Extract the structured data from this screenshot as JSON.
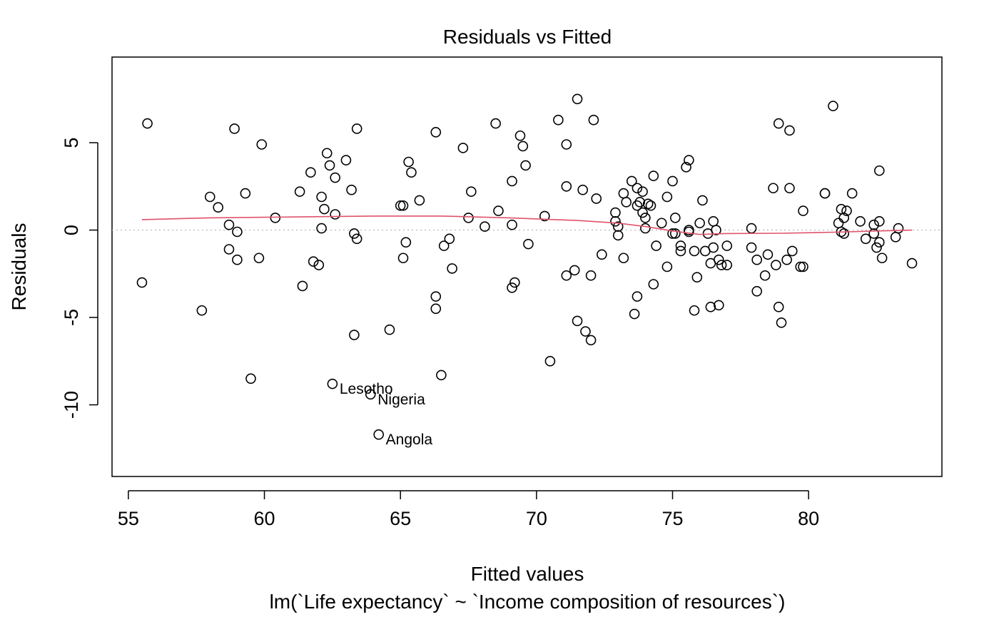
{
  "chart_data": {
    "type": "scatter",
    "title": "Residuals vs Fitted",
    "xlabel": "Fitted values",
    "subtitle": "lm(`Life expectancy` ~ `Income composition of resources`)",
    "ylabel": "Residuals",
    "xlim": [
      54.4,
      84.9
    ],
    "ylim": [
      -14.1,
      9.9
    ],
    "xticks": [
      55,
      60,
      65,
      70,
      75,
      80
    ],
    "yticks": [
      -10,
      -5,
      0,
      5
    ],
    "grid": false,
    "reference_line": {
      "y": 0,
      "style": "dotted",
      "color": "#bebebe"
    },
    "colors": {
      "points": "#000000",
      "smooth": "#df536b",
      "reference": "#bebebe"
    },
    "points": [
      {
        "x": 55.5,
        "y": -3.0
      },
      {
        "x": 55.7,
        "y": 6.1
      },
      {
        "x": 57.7,
        "y": -4.6
      },
      {
        "x": 58.0,
        "y": 1.9
      },
      {
        "x": 58.3,
        "y": 1.3
      },
      {
        "x": 58.7,
        "y": 0.3
      },
      {
        "x": 58.7,
        "y": -1.1
      },
      {
        "x": 58.9,
        "y": 5.8
      },
      {
        "x": 59.0,
        "y": -0.1
      },
      {
        "x": 59.0,
        "y": -1.7
      },
      {
        "x": 59.3,
        "y": 2.1
      },
      {
        "x": 59.5,
        "y": -8.5
      },
      {
        "x": 59.8,
        "y": -1.6
      },
      {
        "x": 59.9,
        "y": 4.9
      },
      {
        "x": 60.4,
        "y": 0.7
      },
      {
        "x": 61.3,
        "y": 2.2
      },
      {
        "x": 61.4,
        "y": -3.2
      },
      {
        "x": 61.7,
        "y": 3.3
      },
      {
        "x": 61.8,
        "y": -1.8
      },
      {
        "x": 62.0,
        "y": -2.0
      },
      {
        "x": 62.1,
        "y": 1.9
      },
      {
        "x": 62.1,
        "y": 0.1
      },
      {
        "x": 62.2,
        "y": 1.2
      },
      {
        "x": 62.3,
        "y": 4.4
      },
      {
        "x": 62.4,
        "y": 3.7
      },
      {
        "x": 62.6,
        "y": 0.9
      },
      {
        "x": 62.6,
        "y": 3.0
      },
      {
        "x": 63.0,
        "y": 4.0
      },
      {
        "x": 63.2,
        "y": 2.3
      },
      {
        "x": 63.3,
        "y": -0.2
      },
      {
        "x": 63.3,
        "y": -6.0
      },
      {
        "x": 63.4,
        "y": 5.8
      },
      {
        "x": 63.4,
        "y": -0.5
      },
      {
        "x": 64.6,
        "y": -5.7
      },
      {
        "x": 65.0,
        "y": 1.4
      },
      {
        "x": 65.1,
        "y": -1.6
      },
      {
        "x": 65.1,
        "y": 1.4
      },
      {
        "x": 65.2,
        "y": -0.7
      },
      {
        "x": 65.3,
        "y": 3.9
      },
      {
        "x": 65.4,
        "y": 3.3
      },
      {
        "x": 65.7,
        "y": 1.7
      },
      {
        "x": 66.3,
        "y": 5.6
      },
      {
        "x": 66.3,
        "y": -3.8
      },
      {
        "x": 66.3,
        "y": -4.5
      },
      {
        "x": 66.5,
        "y": -8.3
      },
      {
        "x": 66.6,
        "y": -0.9
      },
      {
        "x": 66.8,
        "y": -0.5
      },
      {
        "x": 66.9,
        "y": -2.2
      },
      {
        "x": 67.3,
        "y": 4.7
      },
      {
        "x": 67.5,
        "y": 0.7
      },
      {
        "x": 67.6,
        "y": 2.2
      },
      {
        "x": 68.1,
        "y": 0.2
      },
      {
        "x": 68.5,
        "y": 6.1
      },
      {
        "x": 68.6,
        "y": 1.1
      },
      {
        "x": 69.1,
        "y": 2.8
      },
      {
        "x": 69.1,
        "y": 0.3
      },
      {
        "x": 69.1,
        "y": -3.3
      },
      {
        "x": 69.2,
        "y": -3.0
      },
      {
        "x": 69.4,
        "y": 5.4
      },
      {
        "x": 69.5,
        "y": 4.8
      },
      {
        "x": 69.6,
        "y": 3.7
      },
      {
        "x": 69.7,
        "y": -0.8
      },
      {
        "x": 70.3,
        "y": 0.8
      },
      {
        "x": 70.5,
        "y": -7.5
      },
      {
        "x": 70.8,
        "y": 6.3
      },
      {
        "x": 71.1,
        "y": 4.9
      },
      {
        "x": 71.1,
        "y": 2.5
      },
      {
        "x": 71.1,
        "y": -2.6
      },
      {
        "x": 71.4,
        "y": -2.3
      },
      {
        "x": 71.5,
        "y": 7.5
      },
      {
        "x": 71.5,
        "y": -5.2
      },
      {
        "x": 71.7,
        "y": 2.3
      },
      {
        "x": 71.8,
        "y": -5.8
      },
      {
        "x": 72.0,
        "y": -2.6
      },
      {
        "x": 72.0,
        "y": -6.3
      },
      {
        "x": 72.1,
        "y": 6.3
      },
      {
        "x": 72.2,
        "y": 1.8
      },
      {
        "x": 72.4,
        "y": -1.4
      },
      {
        "x": 72.9,
        "y": 1.0
      },
      {
        "x": 72.9,
        "y": 0.5
      },
      {
        "x": 73.0,
        "y": -0.3
      },
      {
        "x": 73.0,
        "y": 0.2
      },
      {
        "x": 73.2,
        "y": 2.1
      },
      {
        "x": 73.2,
        "y": -1.6
      },
      {
        "x": 73.3,
        "y": 1.6
      },
      {
        "x": 73.5,
        "y": 2.8
      },
      {
        "x": 73.6,
        "y": -4.8
      },
      {
        "x": 73.7,
        "y": -3.8
      },
      {
        "x": 73.7,
        "y": 2.4
      },
      {
        "x": 73.7,
        "y": 1.4
      },
      {
        "x": 73.8,
        "y": 1.6
      },
      {
        "x": 73.9,
        "y": 1.0
      },
      {
        "x": 73.9,
        "y": 2.2
      },
      {
        "x": 74.0,
        "y": 0.7
      },
      {
        "x": 74.0,
        "y": 0.1
      },
      {
        "x": 74.1,
        "y": 1.5
      },
      {
        "x": 74.2,
        "y": 1.4
      },
      {
        "x": 74.3,
        "y": 3.1
      },
      {
        "x": 74.3,
        "y": -3.1
      },
      {
        "x": 74.4,
        "y": -0.9
      },
      {
        "x": 74.6,
        "y": 0.4
      },
      {
        "x": 74.8,
        "y": 1.9
      },
      {
        "x": 74.8,
        "y": -2.1
      },
      {
        "x": 75.0,
        "y": 2.8
      },
      {
        "x": 75.0,
        "y": -0.2
      },
      {
        "x": 75.1,
        "y": 0.7
      },
      {
        "x": 75.1,
        "y": -0.2
      },
      {
        "x": 75.3,
        "y": -0.9
      },
      {
        "x": 75.3,
        "y": -1.2
      },
      {
        "x": 75.5,
        "y": 3.6
      },
      {
        "x": 75.6,
        "y": 4.0
      },
      {
        "x": 75.6,
        "y": 0.0
      },
      {
        "x": 75.6,
        "y": -0.1
      },
      {
        "x": 75.8,
        "y": -1.2
      },
      {
        "x": 75.8,
        "y": -4.6
      },
      {
        "x": 75.9,
        "y": -2.7
      },
      {
        "x": 76.0,
        "y": 0.4
      },
      {
        "x": 76.1,
        "y": 1.7
      },
      {
        "x": 76.2,
        "y": -1.2
      },
      {
        "x": 76.3,
        "y": -0.2
      },
      {
        "x": 76.4,
        "y": -1.9
      },
      {
        "x": 76.4,
        "y": -4.4
      },
      {
        "x": 76.5,
        "y": 0.5
      },
      {
        "x": 76.5,
        "y": -1.0
      },
      {
        "x": 76.6,
        "y": 0.0
      },
      {
        "x": 76.7,
        "y": -1.7
      },
      {
        "x": 76.7,
        "y": -4.3
      },
      {
        "x": 76.8,
        "y": -2.0
      },
      {
        "x": 77.0,
        "y": -0.9
      },
      {
        "x": 77.0,
        "y": -2.0
      },
      {
        "x": 77.9,
        "y": 0.1
      },
      {
        "x": 77.9,
        "y": -1.0
      },
      {
        "x": 78.1,
        "y": -1.7
      },
      {
        "x": 78.1,
        "y": -3.5
      },
      {
        "x": 78.4,
        "y": -2.6
      },
      {
        "x": 78.5,
        "y": -1.4
      },
      {
        "x": 78.7,
        "y": 2.4
      },
      {
        "x": 78.8,
        "y": -2.0
      },
      {
        "x": 78.9,
        "y": 6.1
      },
      {
        "x": 78.9,
        "y": -4.4
      },
      {
        "x": 79.0,
        "y": -5.3
      },
      {
        "x": 79.2,
        "y": -1.7
      },
      {
        "x": 79.3,
        "y": 5.7
      },
      {
        "x": 79.3,
        "y": 2.4
      },
      {
        "x": 79.4,
        "y": -1.2
      },
      {
        "x": 79.7,
        "y": -2.1
      },
      {
        "x": 79.8,
        "y": 1.1
      },
      {
        "x": 79.8,
        "y": -2.1
      },
      {
        "x": 80.6,
        "y": 2.1
      },
      {
        "x": 80.6,
        "y": 2.1
      },
      {
        "x": 80.9,
        "y": 7.1
      },
      {
        "x": 81.1,
        "y": 0.4
      },
      {
        "x": 81.2,
        "y": -0.1
      },
      {
        "x": 81.2,
        "y": 1.2
      },
      {
        "x": 81.3,
        "y": 0.7
      },
      {
        "x": 81.3,
        "y": -0.2
      },
      {
        "x": 81.4,
        "y": 1.1
      },
      {
        "x": 81.6,
        "y": 2.1
      },
      {
        "x": 81.9,
        "y": 0.5
      },
      {
        "x": 82.1,
        "y": -0.5
      },
      {
        "x": 82.4,
        "y": 0.3
      },
      {
        "x": 82.4,
        "y": -0.2
      },
      {
        "x": 82.5,
        "y": -1.0
      },
      {
        "x": 82.6,
        "y": 3.4
      },
      {
        "x": 82.6,
        "y": 0.5
      },
      {
        "x": 82.6,
        "y": -0.7
      },
      {
        "x": 82.7,
        "y": -1.6
      },
      {
        "x": 83.2,
        "y": -0.4
      },
      {
        "x": 83.3,
        "y": 0.1
      },
      {
        "x": 83.8,
        "y": -1.9
      }
    ],
    "labeled_points": [
      {
        "label": "Lesotho",
        "x": 62.5,
        "y": -8.8
      },
      {
        "label": "Nigeria",
        "x": 63.9,
        "y": -9.4
      },
      {
        "label": "Angola",
        "x": 64.2,
        "y": -11.7
      }
    ],
    "smooth_line": {
      "x": [
        55.5,
        58.0,
        61.0,
        64.0,
        66.5,
        69.0,
        71.5,
        73.0,
        74.0,
        75.0,
        76.0,
        77.0,
        79.0,
        81.0,
        82.5,
        83.8
      ],
      "y": [
        0.6,
        0.7,
        0.75,
        0.8,
        0.8,
        0.7,
        0.55,
        0.4,
        0.2,
        -0.05,
        -0.25,
        -0.2,
        -0.18,
        -0.12,
        -0.05,
        0.0
      ]
    }
  }
}
